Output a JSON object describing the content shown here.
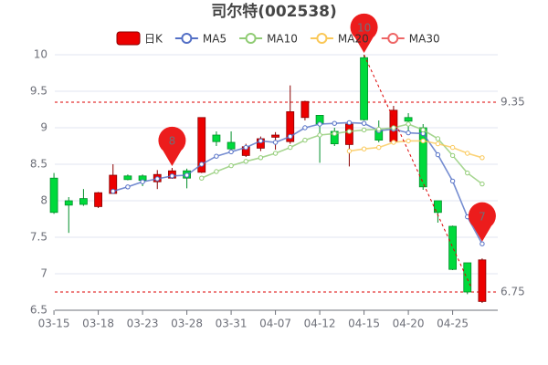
{
  "chart_data": {
    "type": "candlestick",
    "title": "司尔特(002538)",
    "categories": [
      "03-15",
      null,
      null,
      "03-18",
      null,
      null,
      "03-23",
      null,
      null,
      "03-28",
      null,
      null,
      "03-31",
      null,
      null,
      "04-07",
      null,
      null,
      "04-12",
      null,
      null,
      "04-15",
      null,
      null,
      "04-20",
      null,
      null,
      "04-25",
      null,
      null
    ],
    "candle_name": "日K",
    "up_color": "#ec0000",
    "down_color": "#00da3c",
    "candles": [
      [
        8.31,
        7.84,
        7.82,
        8.38
      ],
      [
        8.0,
        7.94,
        7.56,
        8.05
      ],
      [
        8.03,
        7.95,
        7.93,
        8.16
      ],
      [
        7.92,
        8.11,
        7.9,
        8.12
      ],
      [
        8.1,
        8.35,
        8.1,
        8.5
      ],
      [
        8.34,
        8.29,
        8.28,
        8.36
      ],
      [
        8.34,
        8.28,
        8.2,
        8.36
      ],
      [
        8.26,
        8.36,
        8.16,
        8.42
      ],
      [
        8.31,
        8.41,
        8.3,
        8.45
      ],
      [
        8.41,
        8.31,
        8.17,
        8.44
      ],
      [
        8.39,
        9.14,
        8.38,
        9.14
      ],
      [
        8.9,
        8.81,
        8.75,
        8.95
      ],
      [
        8.8,
        8.71,
        8.65,
        8.95
      ],
      [
        8.62,
        8.74,
        8.6,
        8.78
      ],
      [
        8.72,
        8.85,
        8.68,
        8.88
      ],
      [
        8.87,
        8.9,
        8.7,
        8.94
      ],
      [
        8.81,
        9.22,
        8.78,
        9.58
      ],
      [
        9.14,
        9.36,
        9.1,
        9.37
      ],
      [
        9.17,
        9.05,
        8.52,
        9.17
      ],
      [
        8.95,
        8.78,
        8.75,
        9.0
      ],
      [
        8.77,
        9.05,
        8.47,
        9.08
      ],
      [
        9.96,
        9.11,
        9.1,
        10.0
      ],
      [
        8.96,
        8.83,
        8.8,
        9.1
      ],
      [
        8.81,
        9.24,
        8.8,
        9.3
      ],
      [
        9.14,
        9.09,
        8.95,
        9.2
      ],
      [
        9.0,
        8.19,
        8.15,
        9.05
      ],
      [
        8.0,
        7.84,
        7.7,
        8.0
      ],
      [
        7.65,
        7.06,
        7.05,
        7.66
      ],
      [
        7.15,
        6.75,
        6.72,
        7.15
      ],
      [
        6.62,
        7.19,
        6.6,
        7.21
      ]
    ],
    "series": [
      {
        "name": "MA5",
        "color": "#5470c6",
        "values": [
          null,
          null,
          null,
          null,
          8.13,
          8.19,
          8.26,
          8.3,
          8.34,
          8.35,
          8.5,
          8.61,
          8.67,
          8.73,
          8.82,
          8.8,
          8.88,
          9.0,
          9.05,
          9.06,
          9.07,
          9.06,
          8.96,
          8.98,
          8.93,
          8.92,
          8.63,
          8.27,
          7.78,
          7.41
        ]
      },
      {
        "name": "MA10",
        "color": "#91cc75",
        "values": [
          null,
          null,
          null,
          null,
          null,
          null,
          null,
          null,
          null,
          null,
          8.31,
          8.4,
          8.48,
          8.54,
          8.59,
          8.65,
          8.73,
          8.83,
          8.9,
          8.92,
          8.95,
          8.97,
          8.98,
          9.0,
          9.05,
          8.97,
          8.85,
          8.62,
          8.38,
          8.23
        ]
      },
      {
        "name": "MA20",
        "color": "#fac858",
        "values": [
          null,
          null,
          null,
          null,
          null,
          null,
          null,
          null,
          null,
          null,
          null,
          null,
          null,
          null,
          null,
          null,
          null,
          null,
          null,
          null,
          8.68,
          8.71,
          8.73,
          8.8,
          8.82,
          8.82,
          8.78,
          8.73,
          8.65,
          8.59
        ]
      },
      {
        "name": "MA30",
        "color": "#ee6666",
        "values": [
          null,
          null,
          null,
          null,
          null,
          null,
          null,
          null,
          null,
          null,
          null,
          null,
          null,
          null,
          null,
          null,
          null,
          null,
          null,
          null,
          null,
          null,
          null,
          null,
          null,
          null,
          null,
          null,
          null,
          null
        ]
      }
    ],
    "mark_lines": [
      9.35,
      6.75
    ],
    "mark_points": [
      {
        "index": 8,
        "value": 8
      },
      {
        "index": 21,
        "value": 10
      },
      {
        "index": 29,
        "value": 7
      }
    ],
    "ylim": [
      6.5,
      10
    ],
    "yticks": [
      6.5,
      7,
      7.5,
      8,
      8.5,
      9,
      9.5,
      10
    ],
    "grid": true
  }
}
